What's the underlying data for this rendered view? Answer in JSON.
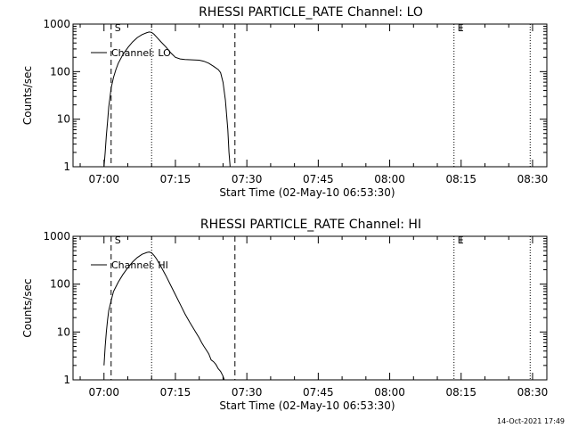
{
  "footer_timestamp": "14-Oct-2021 17:49",
  "chart_data": [
    {
      "type": "line",
      "title": "RHESSI PARTICLE_RATE Channel: LO",
      "xlabel": "Start Time (02-May-10 06:53:30)",
      "ylabel": "Counts/sec",
      "yscale": "log",
      "xlim": [
        "06:53:30",
        "08:33:00"
      ],
      "ylim": [
        1,
        1000
      ],
      "x_ticks": [
        "07:00",
        "07:15",
        "07:30",
        "07:45",
        "08:00",
        "08:15",
        "08:30"
      ],
      "y_ticks": [
        "1",
        "10",
        "100",
        "1000"
      ],
      "legend": {
        "label": "Channel: LO",
        "position": "top-left"
      },
      "markers": [
        {
          "label": "S",
          "time": "07:01:30",
          "style": "dashed"
        },
        {
          "label": "",
          "time": "07:10:00",
          "style": "dotted"
        },
        {
          "label": "",
          "time": "07:27:30",
          "style": "dashed"
        },
        {
          "label": "E",
          "time": "08:13:30",
          "style": "dotted"
        },
        {
          "label": "",
          "time": "08:29:30",
          "style": "dotted"
        }
      ],
      "series": [
        {
          "name": "Channel: LO",
          "x": [
            "07:00:00",
            "07:00:15",
            "07:00:30",
            "07:00:45",
            "07:01:00",
            "07:01:30",
            "07:02:00",
            "07:02:30",
            "07:03:00",
            "07:04:00",
            "07:05:00",
            "07:06:00",
            "07:07:00",
            "07:08:00",
            "07:09:00",
            "07:09:30",
            "07:10:00",
            "07:10:30",
            "07:11:00",
            "07:12:00",
            "07:13:00",
            "07:14:00",
            "07:15:00",
            "07:16:00",
            "07:17:00",
            "07:18:00",
            "07:19:00",
            "07:20:00",
            "07:21:00",
            "07:22:00",
            "07:23:00",
            "07:24:00",
            "07:24:30",
            "07:25:00",
            "07:25:30",
            "07:26:00",
            "07:26:15",
            "07:26:30"
          ],
          "values": [
            1,
            2,
            4.5,
            9,
            18,
            45,
            75,
            110,
            150,
            230,
            320,
            420,
            520,
            600,
            660,
            680,
            670,
            610,
            540,
            420,
            330,
            250,
            200,
            185,
            180,
            178,
            176,
            174,
            165,
            150,
            130,
            110,
            95,
            60,
            25,
            6,
            2,
            1
          ]
        }
      ]
    },
    {
      "type": "line",
      "title": "RHESSI PARTICLE_RATE Channel: HI",
      "xlabel": "Start Time (02-May-10 06:53:30)",
      "ylabel": "Counts/sec",
      "yscale": "log",
      "xlim": [
        "06:53:30",
        "08:33:00"
      ],
      "ylim": [
        1,
        1000
      ],
      "x_ticks": [
        "07:00",
        "07:15",
        "07:30",
        "07:45",
        "08:00",
        "08:15",
        "08:30"
      ],
      "y_ticks": [
        "1",
        "10",
        "100",
        "1000"
      ],
      "legend": {
        "label": "Channel: HI",
        "position": "top-left"
      },
      "markers": [
        {
          "label": "S",
          "time": "07:01:30",
          "style": "dashed"
        },
        {
          "label": "",
          "time": "07:10:00",
          "style": "dotted"
        },
        {
          "label": "",
          "time": "07:27:30",
          "style": "dashed"
        },
        {
          "label": "E",
          "time": "08:13:30",
          "style": "dotted"
        },
        {
          "label": "",
          "time": "08:29:30",
          "style": "dotted"
        }
      ],
      "series": [
        {
          "name": "Channel: HI",
          "x": [
            "07:00:00",
            "07:00:15",
            "07:00:30",
            "07:00:45",
            "07:01:00",
            "07:01:30",
            "07:02:00",
            "07:03:00",
            "07:04:00",
            "07:05:00",
            "07:06:00",
            "07:07:00",
            "07:08:00",
            "07:09:00",
            "07:09:30",
            "07:10:00",
            "07:10:30",
            "07:11:00",
            "07:12:00",
            "07:13:00",
            "07:14:00",
            "07:15:00",
            "07:16:00",
            "07:17:00",
            "07:18:00",
            "07:19:00",
            "07:20:00",
            "07:20:30",
            "07:21:00",
            "07:21:30",
            "07:22:00",
            "07:22:30",
            "07:23:00",
            "07:23:30",
            "07:24:00",
            "07:24:30",
            "07:25:00",
            "07:25:15"
          ],
          "values": [
            2,
            5,
            10,
            18,
            28,
            45,
            70,
            110,
            160,
            220,
            290,
            360,
            420,
            460,
            470,
            450,
            400,
            340,
            230,
            150,
            95,
            60,
            38,
            24,
            16,
            11,
            7.5,
            6,
            5,
            4.2,
            3.5,
            2.6,
            2.4,
            2.1,
            1.7,
            1.5,
            1.2,
            1
          ]
        }
      ]
    }
  ]
}
